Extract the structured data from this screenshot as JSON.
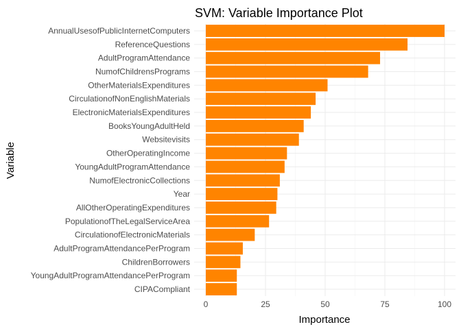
{
  "chart_data": {
    "type": "bar",
    "orientation": "horizontal",
    "title": "SVM: Variable Importance Plot",
    "xlabel": "Importance",
    "ylabel": "Variable",
    "xlim": [
      0,
      100
    ],
    "x_ticks": [
      0,
      25,
      50,
      75,
      100
    ],
    "bar_color": "#FF8400",
    "grid": true,
    "categories": [
      "AnnualUsesofPublicInternetComputers",
      "ReferenceQuestions",
      "AdultProgramAttendance",
      "NumofChildrensPrograms",
      "OtherMaterialsExpenditures",
      "CirculationofNonEnglishMaterials",
      "ElectronicMaterialsExpenditures",
      "BooksYoungAdultHeld",
      "Websitevisits",
      "OtherOperatingIncome",
      "YoungAdultProgramAttendance",
      "NumofElectronicCollections",
      "Year",
      "AllOtherOperatingExpenditures",
      "PopulationofTheLegalServiceArea",
      "CirculationofElectronicMaterials",
      "AdultProgramAttendancePerProgram",
      "ChildrenBorrowers",
      "YoungAdultProgramAttendancePerProgram",
      "CIPACompliant"
    ],
    "values": [
      100,
      84.5,
      73,
      68,
      51,
      46,
      44,
      41,
      39,
      34,
      33,
      31,
      30,
      29.5,
      26.5,
      20.5,
      15.5,
      14.5,
      13,
      13
    ]
  }
}
